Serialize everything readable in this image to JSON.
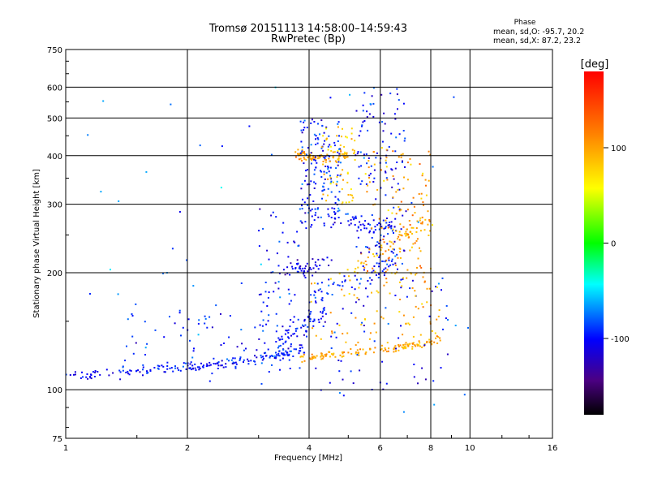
{
  "chart_data": {
    "type": "scatter",
    "title": "Tromsø 20151113 14:58:00–14:59:43",
    "subtitle": "RwPretec (Bp)",
    "xlabel": "Frequency [MHz]",
    "ylabel": "Stationary phase Virtual Height [km]",
    "x_scale": "log",
    "y_scale": "log",
    "xlim": [
      1,
      16
    ],
    "ylim": [
      75,
      750
    ],
    "x_ticks": [
      "1",
      "2",
      "4",
      "6",
      "8",
      "10",
      "16"
    ],
    "x_tick_values": [
      1,
      2,
      4,
      6,
      8,
      10,
      16
    ],
    "y_ticks": [
      "75",
      "100",
      "200",
      "300",
      "400",
      "500",
      "600",
      "750"
    ],
    "y_tick_values": [
      75,
      100,
      200,
      300,
      400,
      500,
      600,
      750
    ],
    "grid": true,
    "phase_info": {
      "title": "Phase",
      "line_o": "mean, sd,O: -95.7, 20.2",
      "line_x": "mean, sd,X:  87.2, 23.2"
    },
    "colorbar": {
      "label": "[deg]",
      "range": [
        -180,
        180
      ],
      "ticks": [
        "100",
        "0",
        "-100"
      ],
      "tick_values": [
        100,
        0,
        -100
      ]
    },
    "traces": [
      {
        "f": [
          1.0,
          1.3,
          1.6,
          2.0,
          2.5,
          3.0,
          3.5,
          3.9
        ],
        "h": [
          108,
          110,
          112,
          114,
          117,
          120,
          124,
          128
        ],
        "phase": -100,
        "spread": 0.025,
        "n": 180
      },
      {
        "f": [
          3.8,
          4.3,
          5.0,
          5.8,
          6.6,
          7.5,
          8.4
        ],
        "h": [
          120,
          122,
          124,
          126,
          128,
          131,
          135
        ],
        "phase": 100,
        "spread": 0.02,
        "n": 130
      },
      {
        "f": [
          3.3,
          3.6,
          4.0,
          4.4
        ],
        "h": [
          128,
          140,
          150,
          160
        ],
        "phase": -100,
        "spread": 0.05,
        "n": 60
      },
      {
        "f": [
          3.5,
          4.0,
          4.6
        ],
        "h": [
          210,
          205,
          220
        ],
        "phase": -110,
        "spread": 0.04,
        "n": 45
      },
      {
        "f": [
          3.7,
          4.3,
          5.0
        ],
        "h": [
          400,
          395,
          405
        ],
        "phase": 100,
        "spread": 0.03,
        "n": 80
      },
      {
        "f": [
          4.5,
          5.3,
          6.0,
          6.6
        ],
        "h": [
          280,
          270,
          260,
          265
        ],
        "phase": -100,
        "spread": 0.05,
        "n": 60
      },
      {
        "f": [
          5.0,
          6.0,
          7.0,
          8.0
        ],
        "h": [
          200,
          230,
          250,
          270
        ],
        "phase": 90,
        "spread": 0.05,
        "n": 60
      },
      {
        "f": [
          4.0,
          5.0,
          6.0,
          6.6
        ],
        "h": [
          170,
          190,
          200,
          230
        ],
        "phase": -90,
        "spread": 0.05,
        "n": 50
      }
    ],
    "clusters": [
      {
        "f": [
          3.8,
          4.8
        ],
        "h": [
          260,
          500
        ],
        "phase": -100,
        "n": 160
      },
      {
        "f": [
          4.3,
          5.2
        ],
        "h": [
          300,
          480
        ],
        "phase": 80,
        "n": 60
      },
      {
        "f": [
          5.2,
          7.0
        ],
        "h": [
          200,
          600
        ],
        "phase": -100,
        "n": 140
      },
      {
        "f": [
          5.5,
          8.0
        ],
        "h": [
          180,
          420
        ],
        "phase": 100,
        "n": 130
      },
      {
        "f": [
          1.4,
          4.0
        ],
        "h": [
          110,
          160
        ],
        "phase": -95,
        "n": 90
      },
      {
        "f": [
          3.0,
          3.8
        ],
        "h": [
          130,
          300
        ],
        "phase": -100,
        "n": 60
      },
      {
        "f": [
          4.0,
          9.0
        ],
        "h": [
          95,
          200
        ],
        "phase": -100,
        "n": 70
      },
      {
        "f": [
          4.0,
          8.5
        ],
        "h": [
          130,
          200
        ],
        "phase": 95,
        "n": 80
      },
      {
        "f": [
          1.0,
          10.0
        ],
        "h": [
          85,
          600
        ],
        "phase": -80,
        "n": 60
      }
    ]
  }
}
